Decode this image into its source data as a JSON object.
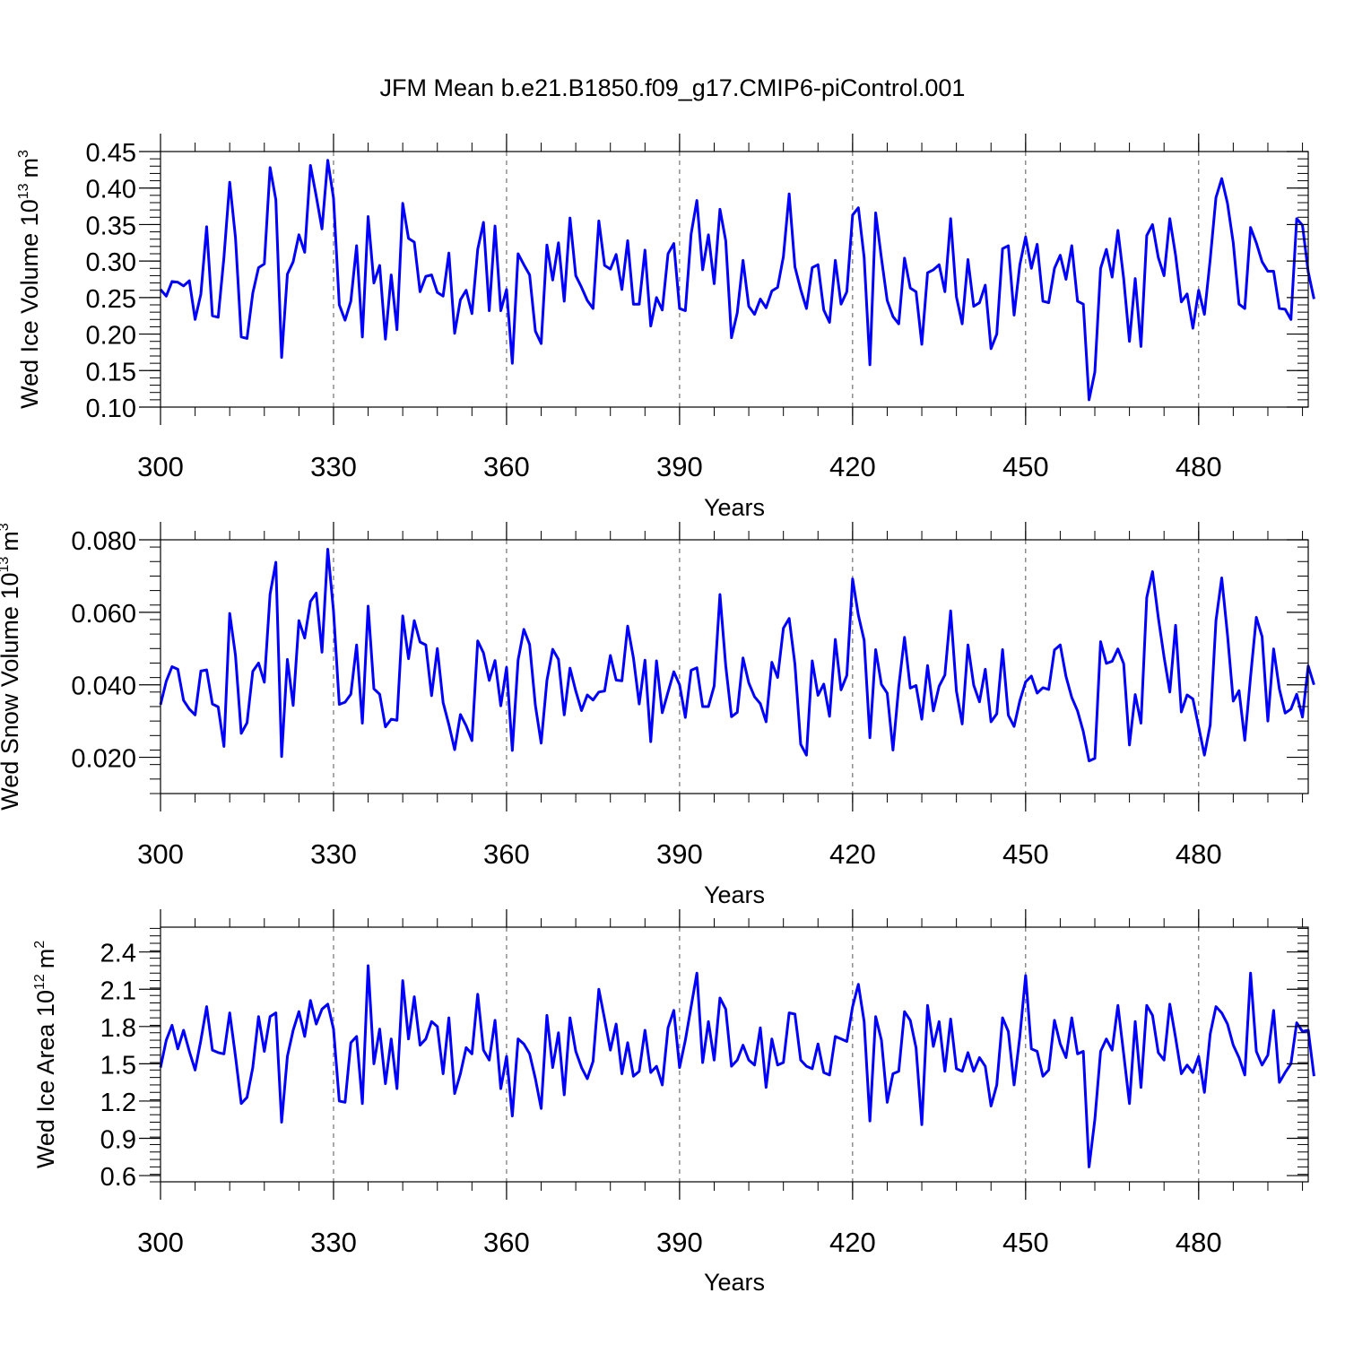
{
  "figure": {
    "title": "JFM Mean b.e21.B1850.f09_g17.CMIP6-piControl.001"
  },
  "style": {
    "line_color": "#0000ff",
    "axis_color": "#000000",
    "grid_color": "#555555"
  },
  "chart_data": [
    {
      "type": "line",
      "ylabel": "Wed Ice Volume 10",
      "ylabel_sup": "13",
      "ylabel_unit": "m",
      "ylabel_unit_sup": "3",
      "xlabel": "Years",
      "xlim": [
        300,
        499
      ],
      "ylim": [
        0.1,
        0.45
      ],
      "xticks": [
        "300",
        "330",
        "360",
        "390",
        "420",
        "450",
        "480"
      ],
      "yticks": [
        "0.10",
        "0.15",
        "0.20",
        "0.25",
        "0.30",
        "0.35",
        "0.40",
        "0.45"
      ],
      "ytick_values": [
        0.1,
        0.15,
        0.2,
        0.25,
        0.3,
        0.35,
        0.4,
        0.45
      ],
      "grid": "vertical dashed at x ticks",
      "x_start": 300,
      "values": [
        0.261,
        0.252,
        0.272,
        0.271,
        0.266,
        0.273,
        0.22,
        0.255,
        0.347,
        0.225,
        0.223,
        0.305,
        0.408,
        0.332,
        0.196,
        0.194,
        0.256,
        0.291,
        0.296,
        0.428,
        0.384,
        0.168,
        0.282,
        0.299,
        0.336,
        0.312,
        0.431,
        0.389,
        0.344,
        0.438,
        0.386,
        0.24,
        0.219,
        0.245,
        0.321,
        0.196,
        0.361,
        0.27,
        0.294,
        0.193,
        0.281,
        0.206,
        0.379,
        0.331,
        0.326,
        0.258,
        0.279,
        0.281,
        0.257,
        0.252,
        0.311,
        0.201,
        0.247,
        0.26,
        0.228,
        0.316,
        0.353,
        0.232,
        0.348,
        0.232,
        0.261,
        0.16,
        0.31,
        0.295,
        0.281,
        0.204,
        0.187,
        0.322,
        0.274,
        0.325,
        0.245,
        0.359,
        0.28,
        0.264,
        0.246,
        0.235,
        0.355,
        0.294,
        0.289,
        0.309,
        0.261,
        0.328,
        0.241,
        0.241,
        0.315,
        0.211,
        0.25,
        0.233,
        0.31,
        0.324,
        0.235,
        0.232,
        0.337,
        0.383,
        0.288,
        0.336,
        0.269,
        0.371,
        0.328,
        0.195,
        0.229,
        0.301,
        0.238,
        0.227,
        0.248,
        0.236,
        0.259,
        0.264,
        0.306,
        0.392,
        0.292,
        0.261,
        0.235,
        0.291,
        0.295,
        0.233,
        0.216,
        0.301,
        0.241,
        0.258,
        0.363,
        0.373,
        0.305,
        0.158,
        0.366,
        0.304,
        0.246,
        0.224,
        0.214,
        0.304,
        0.263,
        0.258,
        0.186,
        0.284,
        0.288,
        0.295,
        0.258,
        0.358,
        0.251,
        0.214,
        0.302,
        0.238,
        0.243,
        0.267,
        0.18,
        0.2,
        0.317,
        0.321,
        0.226,
        0.295,
        0.333,
        0.29,
        0.323,
        0.245,
        0.243,
        0.29,
        0.308,
        0.275,
        0.321,
        0.245,
        0.241,
        0.11,
        0.148,
        0.29,
        0.316,
        0.278,
        0.342,
        0.276,
        0.19,
        0.276,
        0.183,
        0.335,
        0.35,
        0.305,
        0.28,
        0.358,
        0.308,
        0.244,
        0.255,
        0.208,
        0.26,
        0.227,
        0.302,
        0.387,
        0.413,
        0.379,
        0.325,
        0.241,
        0.235,
        0.346,
        0.325,
        0.299,
        0.286,
        0.286,
        0.235,
        0.234,
        0.22,
        0.358,
        0.349,
        0.285,
        0.248
      ]
    },
    {
      "type": "line",
      "ylabel": "Wed Snow Volume 10",
      "ylabel_sup": "13",
      "ylabel_unit": "m",
      "ylabel_unit_sup": "3",
      "xlabel": "Years",
      "xlim": [
        300,
        499
      ],
      "ylim": [
        0.01,
        0.08
      ],
      "xticks": [
        "300",
        "330",
        "360",
        "390",
        "420",
        "450",
        "480"
      ],
      "yticks": [
        "0.020",
        "0.040",
        "0.060",
        "0.080"
      ],
      "ytick_values": [
        0.02,
        0.04,
        0.06,
        0.08
      ],
      "grid": "vertical dashed at x ticks",
      "x_start": 300,
      "values": [
        0.0345,
        0.041,
        0.045,
        0.0443,
        0.0357,
        0.0333,
        0.0317,
        0.0438,
        0.0441,
        0.0347,
        0.0339,
        0.023,
        0.0597,
        0.0481,
        0.0266,
        0.0295,
        0.0437,
        0.046,
        0.0407,
        0.065,
        0.0738,
        0.0202,
        0.047,
        0.0343,
        0.0577,
        0.0529,
        0.063,
        0.0653,
        0.049,
        0.0774,
        0.0603,
        0.0346,
        0.0352,
        0.0374,
        0.051,
        0.0294,
        0.0617,
        0.0389,
        0.0374,
        0.0284,
        0.0305,
        0.0302,
        0.059,
        0.0472,
        0.0577,
        0.0518,
        0.051,
        0.037,
        0.05,
        0.0351,
        0.029,
        0.0221,
        0.0318,
        0.0287,
        0.0246,
        0.0521,
        0.0488,
        0.0412,
        0.0467,
        0.0342,
        0.0448,
        0.0219,
        0.0468,
        0.0553,
        0.0511,
        0.0343,
        0.0239,
        0.0412,
        0.0498,
        0.047,
        0.0317,
        0.0446,
        0.0383,
        0.0329,
        0.0372,
        0.0358,
        0.038,
        0.0383,
        0.0481,
        0.0413,
        0.0411,
        0.0562,
        0.0474,
        0.0347,
        0.0468,
        0.0243,
        0.0466,
        0.0323,
        0.038,
        0.0436,
        0.04,
        0.031,
        0.044,
        0.0447,
        0.034,
        0.034,
        0.0397,
        0.0649,
        0.0453,
        0.0312,
        0.0324,
        0.0474,
        0.0405,
        0.0367,
        0.0348,
        0.0298,
        0.0462,
        0.042,
        0.0556,
        0.0583,
        0.0457,
        0.0236,
        0.0206,
        0.0466,
        0.0371,
        0.0402,
        0.0313,
        0.0525,
        0.0386,
        0.0426,
        0.0692,
        0.0592,
        0.0523,
        0.0254,
        0.0497,
        0.0401,
        0.0377,
        0.022,
        0.0395,
        0.0531,
        0.0391,
        0.0398,
        0.0305,
        0.0453,
        0.0328,
        0.0396,
        0.0427,
        0.0604,
        0.0383,
        0.0292,
        0.051,
        0.0399,
        0.0353,
        0.0443,
        0.0298,
        0.032,
        0.0497,
        0.0316,
        0.0285,
        0.0356,
        0.0408,
        0.0424,
        0.0377,
        0.0392,
        0.0387,
        0.0496,
        0.051,
        0.0423,
        0.0365,
        0.0328,
        0.0271,
        0.019,
        0.0197,
        0.0519,
        0.0459,
        0.0465,
        0.0499,
        0.0458,
        0.0234,
        0.0373,
        0.0294,
        0.0641,
        0.0712,
        0.0586,
        0.0477,
        0.038,
        0.0564,
        0.0325,
        0.0372,
        0.0361,
        0.0284,
        0.0206,
        0.0289,
        0.0577,
        0.0695,
        0.0538,
        0.0355,
        0.0384,
        0.0247,
        0.0422,
        0.0586,
        0.0533,
        0.03,
        0.0499,
        0.0388,
        0.0322,
        0.0333,
        0.0374,
        0.0311,
        0.0452,
        0.04
      ]
    },
    {
      "type": "line",
      "ylabel": "Wed Ice Area 10",
      "ylabel_sup": "12",
      "ylabel_unit": "m",
      "ylabel_unit_sup": "2",
      "xlabel": "Years",
      "xlim": [
        300,
        499
      ],
      "ylim": [
        0.55,
        2.6
      ],
      "xticks": [
        "300",
        "330",
        "360",
        "390",
        "420",
        "450",
        "480"
      ],
      "yticks": [
        "0.6",
        "0.9",
        "1.2",
        "1.5",
        "1.8",
        "2.1",
        "2.4"
      ],
      "ytick_values": [
        0.6,
        0.9,
        1.2,
        1.5,
        1.8,
        2.1,
        2.4
      ],
      "grid": "vertical dashed at x ticks",
      "x_start": 300,
      "values": [
        1.47,
        1.69,
        1.81,
        1.62,
        1.77,
        1.6,
        1.45,
        1.69,
        1.96,
        1.61,
        1.59,
        1.58,
        1.91,
        1.56,
        1.18,
        1.23,
        1.47,
        1.88,
        1.6,
        1.88,
        1.91,
        1.03,
        1.56,
        1.77,
        1.92,
        1.72,
        2.01,
        1.82,
        1.94,
        1.98,
        1.78,
        1.2,
        1.19,
        1.67,
        1.72,
        1.18,
        2.29,
        1.5,
        1.78,
        1.34,
        1.7,
        1.3,
        2.17,
        1.7,
        2.04,
        1.65,
        1.7,
        1.84,
        1.8,
        1.42,
        1.87,
        1.26,
        1.42,
        1.63,
        1.58,
        2.06,
        1.61,
        1.53,
        1.85,
        1.3,
        1.56,
        1.08,
        1.7,
        1.66,
        1.58,
        1.38,
        1.14,
        1.89,
        1.47,
        1.75,
        1.25,
        1.87,
        1.6,
        1.47,
        1.38,
        1.52,
        2.1,
        1.86,
        1.61,
        1.82,
        1.42,
        1.67,
        1.4,
        1.44,
        1.77,
        1.43,
        1.48,
        1.33,
        1.79,
        1.93,
        1.47,
        1.69,
        1.96,
        2.23,
        1.51,
        1.84,
        1.53,
        2.03,
        1.94,
        1.48,
        1.53,
        1.65,
        1.53,
        1.49,
        1.79,
        1.31,
        1.7,
        1.49,
        1.51,
        1.91,
        1.9,
        1.53,
        1.48,
        1.46,
        1.66,
        1.43,
        1.41,
        1.72,
        1.7,
        1.68,
        1.96,
        2.14,
        1.84,
        1.04,
        1.88,
        1.69,
        1.19,
        1.42,
        1.44,
        1.92,
        1.85,
        1.63,
        1.01,
        1.97,
        1.64,
        1.84,
        1.44,
        1.86,
        1.46,
        1.44,
        1.59,
        1.44,
        1.55,
        1.48,
        1.16,
        1.33,
        1.87,
        1.76,
        1.33,
        1.72,
        2.21,
        1.62,
        1.6,
        1.4,
        1.45,
        1.85,
        1.66,
        1.55,
        1.87,
        1.58,
        1.6,
        0.67,
        1.05,
        1.6,
        1.7,
        1.61,
        1.97,
        1.58,
        1.18,
        1.84,
        1.31,
        1.97,
        1.89,
        1.59,
        1.53,
        1.98,
        1.71,
        1.42,
        1.49,
        1.43,
        1.56,
        1.27,
        1.74,
        1.96,
        1.91,
        1.82,
        1.65,
        1.55,
        1.41,
        2.23,
        1.6,
        1.49,
        1.57,
        1.93,
        1.35,
        1.43,
        1.5,
        1.83,
        1.76,
        1.77,
        1.4
      ]
    }
  ]
}
